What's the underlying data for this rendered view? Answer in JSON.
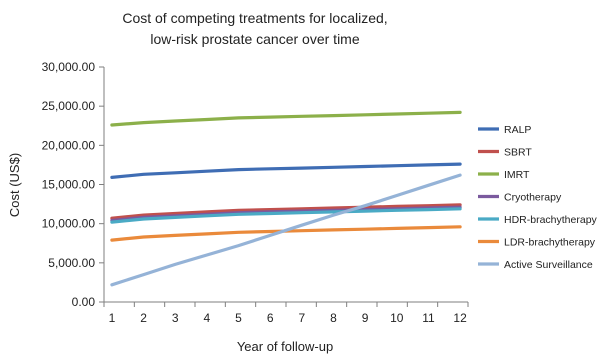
{
  "chart_data": {
    "type": "line",
    "title": "Cost of competing treatments for localized, low-risk prostate cancer over time",
    "title_lines": [
      "Cost of competing treatments for localized,",
      "low-risk prostate cancer over time"
    ],
    "xlabel": "Year of follow-up",
    "ylabel": "Cost  (US$)",
    "x": [
      1,
      2,
      3,
      4,
      5,
      6,
      7,
      8,
      9,
      10,
      11,
      12
    ],
    "xtick_labels": [
      "1",
      "2",
      "3",
      "4",
      "5",
      "6",
      "7",
      "8",
      "9",
      "10",
      "11",
      "12"
    ],
    "ylim": [
      0,
      30000
    ],
    "yticks": [
      0,
      5000,
      10000,
      15000,
      20000,
      25000,
      30000
    ],
    "ytick_labels": [
      "0.00",
      "5,000.00",
      "10,000.00",
      "15,000.00",
      "20,000.00",
      "25,000.00",
      "30,000.00"
    ],
    "grid": false,
    "legend_position": "right",
    "series": [
      {
        "name": "RALP",
        "color": "#3f6db4",
        "values": [
          15900,
          16300,
          16500,
          16700,
          16900,
          17000,
          17100,
          17200,
          17300,
          17400,
          17500,
          17600
        ]
      },
      {
        "name": "SBRT",
        "color": "#c0504d",
        "values": [
          10700,
          11100,
          11300,
          11500,
          11700,
          11800,
          11900,
          12000,
          12100,
          12200,
          12300,
          12400
        ]
      },
      {
        "name": "IMRT",
        "color": "#8cb04a",
        "values": [
          22600,
          22900,
          23100,
          23300,
          23500,
          23600,
          23700,
          23800,
          23900,
          24000,
          24100,
          24200
        ]
      },
      {
        "name": "Cryotherapy",
        "color": "#7b5a9e",
        "values": [
          10400,
          10800,
          11000,
          11200,
          11400,
          11500,
          11600,
          11700,
          11800,
          11900,
          12000,
          12100
        ]
      },
      {
        "name": "HDR-brachytherapy",
        "color": "#4aaac5",
        "values": [
          10200,
          10600,
          10800,
          11000,
          11200,
          11300,
          11400,
          11500,
          11600,
          11700,
          11800,
          11900
        ]
      },
      {
        "name": "LDR-brachytherapy",
        "color": "#ea8a3b",
        "values": [
          7900,
          8300,
          8500,
          8700,
          8900,
          9000,
          9100,
          9200,
          9300,
          9400,
          9500,
          9600
        ]
      },
      {
        "name": "Active Surveillance",
        "color": "#95b3d7",
        "values": [
          2200,
          3500,
          4800,
          6000,
          7200,
          8500,
          9800,
          11100,
          12300,
          13600,
          14900,
          16200
        ]
      }
    ]
  }
}
